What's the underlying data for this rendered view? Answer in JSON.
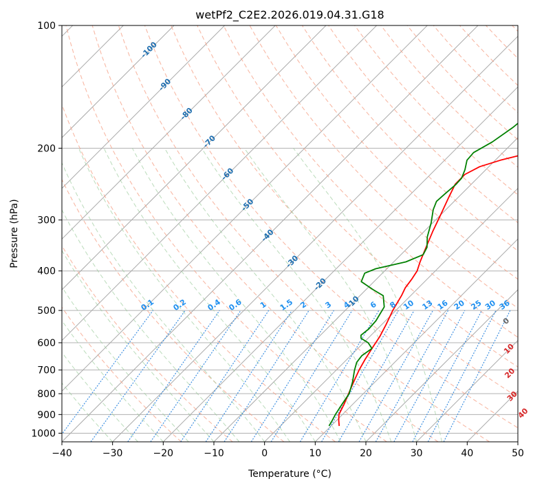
{
  "chart_data": {
    "type": "line",
    "chart_kind": "skew-t log-p diagram",
    "title": "wetPf2_C2E2.2026.019.04.31.G18",
    "xlabel": "Temperature (°C)",
    "ylabel": "Pressure (hPa)",
    "xlim": [
      -40,
      50
    ],
    "ylim": [
      1050,
      100
    ],
    "x_ticks": [
      -40,
      -30,
      -20,
      -10,
      0,
      10,
      20,
      30,
      40,
      50
    ],
    "y_ticks": [
      100,
      200,
      300,
      400,
      500,
      600,
      700,
      800,
      900,
      1000
    ],
    "colors": {
      "temperature": "#ff0000",
      "dewpoint": "#008000",
      "isotherm": "#aaaaaa",
      "dry_adiabat": "#f5a085",
      "moist_adiabat": "#9ccc9c",
      "mixing_ratio": "#3d8fe0",
      "dry_label": "#1f6fb0",
      "mixing_label": "#1e8ff0",
      "warm_label": "#d62728",
      "zero_label": "#666666"
    },
    "series": [
      {
        "name": "Temperature",
        "points": [
          [
            11.6,
            960
          ],
          [
            10.4,
            930
          ],
          [
            9.3,
            900
          ],
          [
            8.3,
            850
          ],
          [
            7.1,
            800
          ],
          [
            5.8,
            750
          ],
          [
            4.5,
            700
          ],
          [
            3.6,
            660
          ],
          [
            2.8,
            620
          ],
          [
            2.0,
            580
          ],
          [
            0.8,
            540
          ],
          [
            -0.6,
            500
          ],
          [
            -1.8,
            460
          ],
          [
            -2.6,
            440
          ],
          [
            -3.0,
            420
          ],
          [
            -3.6,
            400
          ],
          [
            -4.8,
            380
          ],
          [
            -6.5,
            350
          ],
          [
            -8.3,
            320
          ],
          [
            -10.1,
            290
          ],
          [
            -11.8,
            265
          ],
          [
            -13.2,
            245
          ],
          [
            -13.2,
            232
          ],
          [
            -11.8,
            222
          ],
          [
            -9.0,
            214
          ],
          [
            -5.0,
            206
          ],
          [
            -1.7,
            196
          ],
          [
            1.4,
            185
          ],
          [
            4.4,
            172
          ],
          [
            7.5,
            158
          ],
          [
            9.6,
            144
          ],
          [
            10.6,
            134
          ],
          [
            11.0,
            126
          ],
          [
            11.7,
            118
          ],
          [
            14.0,
            111
          ],
          [
            17.0,
            105
          ],
          [
            19.7,
            100
          ]
        ]
      },
      {
        "name": "Dewpoint",
        "points": [
          [
            9.6,
            960
          ],
          [
            9.3,
            940
          ],
          [
            8.6,
            900
          ],
          [
            7.9,
            850
          ],
          [
            7.2,
            800
          ],
          [
            5.6,
            750
          ],
          [
            3.6,
            700
          ],
          [
            2.5,
            670
          ],
          [
            2.2,
            645
          ],
          [
            2.8,
            620
          ],
          [
            0.9,
            600
          ],
          [
            -1.4,
            585
          ],
          [
            -2.0,
            575
          ],
          [
            -1.7,
            555
          ],
          [
            -1.9,
            530
          ],
          [
            -3.0,
            490
          ],
          [
            -5.4,
            460
          ],
          [
            -8.5,
            445
          ],
          [
            -12.5,
            425
          ],
          [
            -13.5,
            405
          ],
          [
            -12.2,
            395
          ],
          [
            -7.6,
            380
          ],
          [
            -5.6,
            365
          ],
          [
            -6.3,
            350
          ],
          [
            -8.3,
            330
          ],
          [
            -10.3,
            305
          ],
          [
            -12.5,
            283
          ],
          [
            -13.5,
            270
          ],
          [
            -13.3,
            258
          ],
          [
            -13.0,
            246
          ],
          [
            -13.1,
            237
          ],
          [
            -14.1,
            226
          ],
          [
            -15.6,
            214
          ],
          [
            -15.8,
            205
          ],
          [
            -14.2,
            193
          ],
          [
            -13.0,
            178
          ],
          [
            -12.4,
            165
          ],
          [
            -12.2,
            152
          ],
          [
            -11.5,
            143
          ],
          [
            -10.3,
            136
          ],
          [
            -8.0,
            128
          ],
          [
            -4.8,
            117
          ],
          [
            -2.0,
            109
          ],
          [
            0.0,
            103
          ],
          [
            0.8,
            100
          ]
        ]
      }
    ],
    "isotherm_temps": [
      -150,
      -140,
      -130,
      -120,
      -110,
      -100,
      -90,
      -80,
      -70,
      -60,
      -50,
      -40,
      -30,
      -20,
      -10,
      0,
      10,
      20,
      30,
      40,
      50
    ],
    "dry_adiabat_thetas": [
      -20,
      -10,
      0,
      10,
      20,
      30,
      40,
      50,
      60,
      70,
      80,
      90,
      100,
      110,
      120,
      130,
      140,
      150,
      160,
      170,
      180,
      190,
      200
    ],
    "moist_adiabat_starts": [
      -30,
      -25,
      -20,
      -15,
      -10,
      -5,
      0,
      5,
      10,
      15,
      20,
      25,
      30,
      35
    ],
    "dry_label_values": [
      "-100",
      "-90",
      "-80",
      "-70",
      "-60",
      "-50",
      "-40",
      "-30",
      "-20",
      "-10"
    ],
    "dry_label_temps": [
      -100,
      -90,
      -80,
      -70,
      -60,
      -50,
      -40,
      -30,
      -20,
      -10
    ],
    "dry_label_pressures": [
      115,
      140,
      165,
      193,
      232,
      276,
      328,
      380,
      432,
      478
    ],
    "warm_label_values": [
      "0",
      "10",
      "20",
      "30",
      "40"
    ],
    "warm_label_temps": [
      24,
      30,
      35,
      40,
      45.5
    ],
    "warm_label_pressures": [
      532,
      622,
      714,
      813,
      895
    ],
    "mixing_ratio_values": [
      "0.1",
      "0.2",
      "0.4",
      "0.6",
      "1",
      "1.5",
      "2",
      "3",
      "4",
      "6",
      "8",
      "10",
      "13",
      "16",
      "20",
      "25",
      "30",
      "36"
    ],
    "mixing_ratio_grams": [
      0.1,
      0.2,
      0.4,
      0.6,
      1,
      1.5,
      2,
      3,
      4,
      6,
      8,
      10,
      13,
      16,
      20,
      25,
      30,
      36
    ]
  }
}
